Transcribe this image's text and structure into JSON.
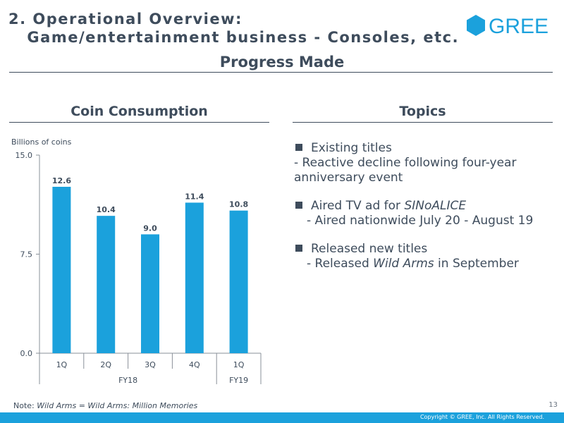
{
  "header": {
    "title_line1": "2. Operational Overview:",
    "title_line2": "   Game/entertainment business - Consoles, etc.",
    "logo_text": "GREE"
  },
  "subtitle": "Progress Made",
  "left_section": {
    "heading": "Coin Consumption"
  },
  "right_section": {
    "heading": "Topics"
  },
  "chart_data": {
    "type": "bar",
    "title": "Coin Consumption",
    "ylabel": "Billions of coins",
    "xlabel": "",
    "categories": [
      "1Q",
      "2Q",
      "3Q",
      "4Q",
      "1Q"
    ],
    "groups": [
      {
        "label": "FY18",
        "count": 4
      },
      {
        "label": "FY19",
        "count": 1
      }
    ],
    "values": [
      12.6,
      10.4,
      9.0,
      11.4,
      10.8
    ],
    "value_labels": [
      "12.6",
      "10.4",
      "9.0",
      "11.4",
      "10.8"
    ],
    "ylim": [
      0,
      15
    ],
    "yticks": [
      0,
      7.5,
      15
    ],
    "ytick_labels": [
      "0.0",
      "7.5",
      "15.0"
    ],
    "bar_color": "#1ba1dc",
    "grid": false
  },
  "topics": [
    {
      "title": "Existing titles",
      "detail": {
        "prefix": "- Reactive decline following four-year anniversary event",
        "italic": "",
        "suffix": ""
      }
    },
    {
      "title_prefix": "Aired TV ad for ",
      "title_italic": "SINoALICE",
      "detail": {
        "prefix": "- Aired nationwide July 20 - August 19",
        "italic": "",
        "suffix": ""
      }
    },
    {
      "title": "Released new titles",
      "detail": {
        "prefix": "- Released ",
        "italic": "Wild Arms",
        "suffix": " in September"
      }
    }
  ],
  "note": {
    "prefix": "Note: ",
    "italic": "Wild Arms = Wild Arms: Million Memories"
  },
  "page_number": "13",
  "copyright": "Copyright © GREE, Inc. All Rights Reserved.",
  "colors": {
    "accent": "#1ba1dc",
    "text": "#3e4c5c",
    "footer": "#1ba1dc"
  }
}
